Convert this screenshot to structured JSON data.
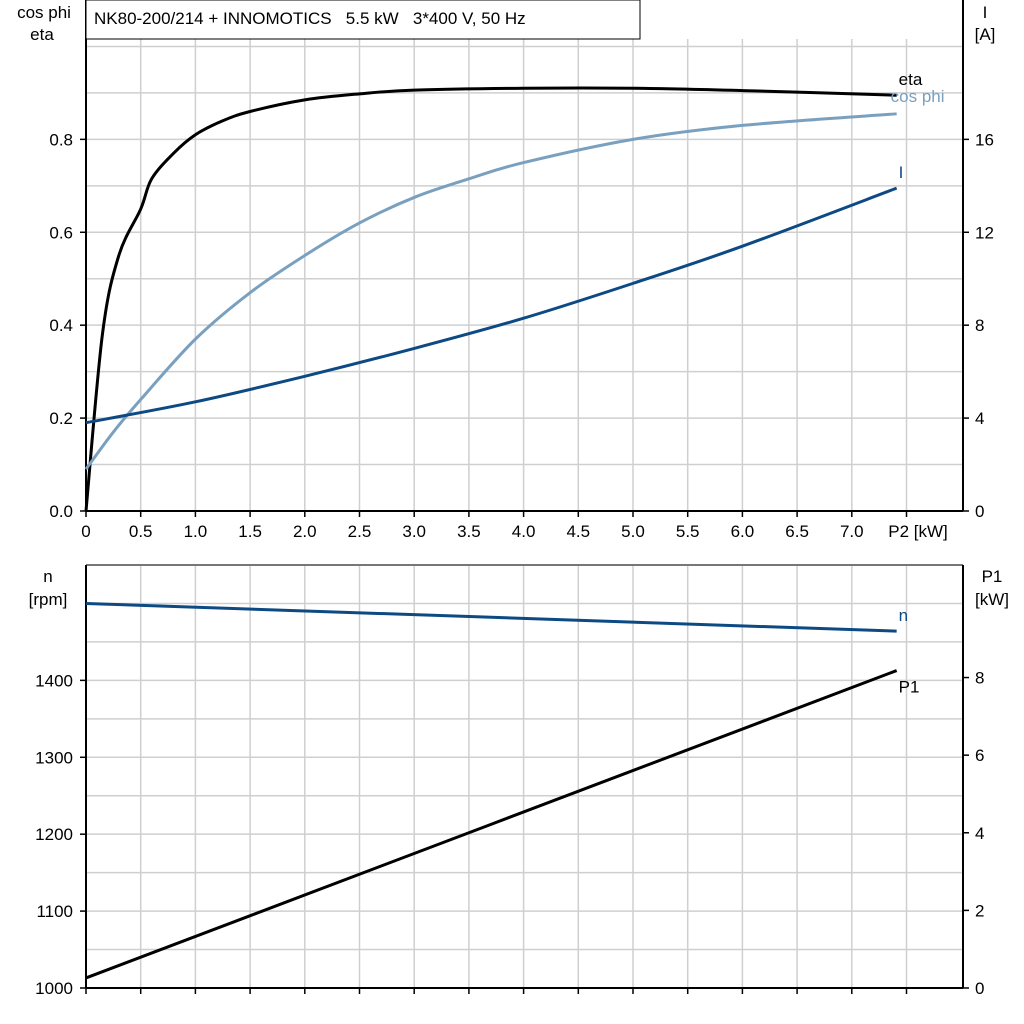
{
  "chart_data": [
    {
      "type": "line",
      "title": "NK80-200/214 + INNOMOTICS   5.5 kW   3*400 V, 50 Hz",
      "xlabel": "P2 [kW]",
      "xlim": [
        0,
        8.0
      ],
      "xticks": [
        "0",
        "0.5",
        "1.0",
        "1.5",
        "2.0",
        "2.5",
        "3.0",
        "3.5",
        "4.0",
        "4.5",
        "5.0",
        "5.5",
        "6.0",
        "6.5",
        "7.0"
      ],
      "ylabel_left": [
        "cos phi",
        "eta"
      ],
      "ylim_left": [
        0,
        1.1
      ],
      "yticks_left": [
        "0.0",
        "0.2",
        "0.4",
        "0.6",
        "0.8"
      ],
      "ylabel_right": [
        "I",
        "[A]"
      ],
      "ylim_right": [
        0,
        22
      ],
      "yticks_right": [
        "0",
        "4",
        "8",
        "12",
        "16"
      ],
      "grid": true,
      "series": [
        {
          "name": "eta",
          "axis": "left",
          "color": "#000000",
          "x": [
            0,
            0.15,
            0.3,
            0.5,
            0.6,
            0.8,
            1.0,
            1.25,
            1.5,
            2.0,
            2.5,
            3.0,
            4.0,
            5.0,
            6.0,
            7.41
          ],
          "y": [
            0,
            0.38,
            0.55,
            0.65,
            0.715,
            0.77,
            0.81,
            0.84,
            0.86,
            0.885,
            0.898,
            0.906,
            0.91,
            0.91,
            0.905,
            0.895
          ]
        },
        {
          "name": "cos phi",
          "axis": "left",
          "color": "#7aa0c0",
          "x": [
            0,
            0.25,
            0.5,
            1.0,
            1.5,
            2.0,
            2.5,
            3.0,
            3.5,
            4.0,
            5.0,
            6.0,
            7.41
          ],
          "y": [
            0.09,
            0.17,
            0.24,
            0.37,
            0.47,
            0.55,
            0.62,
            0.675,
            0.715,
            0.75,
            0.8,
            0.83,
            0.855
          ]
        },
        {
          "name": "I",
          "axis": "right",
          "color": "#0d4a84",
          "x": [
            0,
            1.0,
            2.0,
            3.0,
            4.0,
            5.0,
            6.0,
            7.41
          ],
          "y": [
            3.8,
            4.7,
            5.8,
            7.0,
            8.3,
            9.8,
            11.4,
            13.9
          ]
        }
      ]
    },
    {
      "type": "line",
      "xlim": [
        0,
        8.0
      ],
      "ylabel_left": [
        "n",
        "[rpm]"
      ],
      "ylim_left": [
        1000,
        1550
      ],
      "yticks_left": [
        "1000",
        "1100",
        "1200",
        "1300",
        "1400"
      ],
      "ylabel_right": [
        "P1",
        "[kW]"
      ],
      "ylim_right": [
        0,
        10.9
      ],
      "yticks_right": [
        "0",
        "2",
        "4",
        "6",
        "8"
      ],
      "grid": true,
      "series": [
        {
          "name": "n",
          "axis": "left",
          "color": "#0d4a84",
          "x": [
            0,
            7.41
          ],
          "y": [
            1500,
            1464
          ]
        },
        {
          "name": "P1",
          "axis": "right",
          "color": "#000000",
          "x": [
            0,
            7.41
          ],
          "y": [
            0.26,
            8.18
          ]
        }
      ]
    }
  ]
}
